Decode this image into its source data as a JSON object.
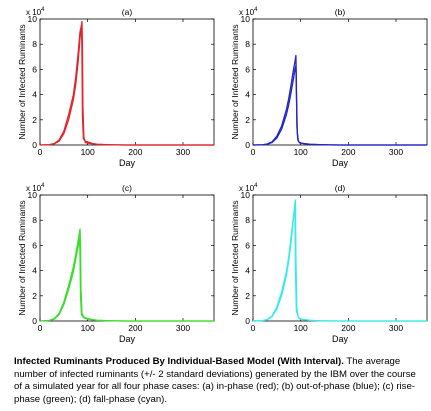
{
  "chart_data": [
    {
      "type": "line",
      "title": "(a)",
      "color": "#e0262a",
      "xlabel": "Day",
      "ylabel": "Number of Infected Ruminants",
      "y_multiplier": "x 10",
      "y_exponent": "4",
      "xlim": [
        0,
        365
      ],
      "ylim": [
        0,
        10
      ],
      "xticks": [
        "0",
        "100",
        "200",
        "300"
      ],
      "xtick_values": [
        0,
        100,
        200,
        300
      ],
      "yticks": [
        "0",
        "2",
        "4",
        "6",
        "8",
        "10"
      ],
      "ytick_values": [
        0,
        2,
        4,
        6,
        8,
        10
      ],
      "series": [
        {
          "x": [
            0,
            20,
            30,
            40,
            50,
            60,
            70,
            75,
            80,
            84,
            88,
            89,
            90,
            92,
            95,
            100,
            110,
            120,
            140,
            160,
            180,
            200,
            250,
            300,
            365
          ],
          "y": [
            0,
            0.02,
            0.1,
            0.3,
            0.9,
            2.0,
            3.6,
            4.8,
            6.6,
            8.5,
            9.8,
            8.0,
            3.0,
            0.6,
            0.2,
            0.15,
            0.1,
            0.05,
            0.02,
            0.01,
            0,
            0,
            0,
            0,
            0
          ]
        },
        {
          "x": [
            0,
            20,
            30,
            40,
            50,
            60,
            70,
            75,
            80,
            84,
            87,
            88,
            89,
            91,
            95,
            100,
            110,
            120,
            140,
            160,
            180,
            200,
            250,
            300,
            365
          ],
          "y": [
            0,
            0.03,
            0.12,
            0.4,
            1.1,
            2.4,
            4.0,
            5.4,
            7.3,
            9.0,
            9.5,
            7.5,
            2.4,
            0.5,
            0.3,
            0.25,
            0.12,
            0.06,
            0.03,
            0.01,
            0,
            0,
            0,
            0,
            0
          ]
        }
      ]
    },
    {
      "type": "line",
      "title": "(b)",
      "color": "#2323c8",
      "xlabel": "Day",
      "ylabel": "Number of Infected Ruminants",
      "y_multiplier": "x 10",
      "y_exponent": "4",
      "xlim": [
        0,
        365
      ],
      "ylim": [
        0,
        10
      ],
      "xticks": [
        "0",
        "100",
        "200",
        "300"
      ],
      "xtick_values": [
        0,
        100,
        200,
        300
      ],
      "yticks": [
        "0",
        "2",
        "4",
        "6",
        "8",
        "10"
      ],
      "ytick_values": [
        0,
        2,
        4,
        6,
        8,
        10
      ],
      "series": [
        {
          "x": [
            0,
            20,
            30,
            40,
            50,
            60,
            70,
            75,
            80,
            85,
            88,
            90,
            91,
            92,
            94,
            97,
            100,
            110,
            120,
            140,
            160,
            180,
            200,
            250,
            300,
            365
          ],
          "y": [
            0,
            0.02,
            0.08,
            0.25,
            0.7,
            1.5,
            2.8,
            3.7,
            4.8,
            6.0,
            6.6,
            7.1,
            5.0,
            1.5,
            0.4,
            0.2,
            0.15,
            0.1,
            0.06,
            0.03,
            0.01,
            0,
            0,
            0,
            0,
            0
          ]
        },
        {
          "x": [
            0,
            20,
            30,
            40,
            50,
            60,
            70,
            75,
            80,
            85,
            88,
            90,
            91,
            93,
            95,
            97,
            100,
            110,
            120,
            140,
            160,
            180,
            200,
            250,
            300,
            365
          ],
          "y": [
            0,
            0.02,
            0.06,
            0.2,
            0.55,
            1.25,
            2.4,
            3.2,
            4.2,
            5.3,
            6.0,
            6.3,
            4.2,
            1.0,
            0.35,
            0.2,
            0.15,
            0.1,
            0.05,
            0.03,
            0.01,
            0,
            0,
            0,
            0,
            0
          ]
        }
      ]
    },
    {
      "type": "line",
      "title": "(c)",
      "color": "#3ddc2e",
      "xlabel": "Day",
      "ylabel": "Number of Infected Ruminants",
      "y_multiplier": "x 10",
      "y_exponent": "4",
      "xlim": [
        0,
        365
      ],
      "ylim": [
        0,
        10
      ],
      "xticks": [
        "0",
        "100",
        "200",
        "300"
      ],
      "xtick_values": [
        0,
        100,
        200,
        300
      ],
      "yticks": [
        "0",
        "2",
        "4",
        "6",
        "8",
        "10"
      ],
      "ytick_values": [
        0,
        2,
        4,
        6,
        8,
        10
      ],
      "series": [
        {
          "x": [
            0,
            20,
            30,
            40,
            50,
            60,
            70,
            75,
            80,
            84,
            85,
            86,
            88,
            92,
            100,
            110,
            120,
            140,
            160,
            180,
            200,
            250,
            300,
            365
          ],
          "y": [
            0,
            0.05,
            0.2,
            0.6,
            1.5,
            2.8,
            4.3,
            5.3,
            6.4,
            7.3,
            6.0,
            2.5,
            0.6,
            0.3,
            0.2,
            0.12,
            0.06,
            0.03,
            0.01,
            0,
            0,
            0,
            0,
            0
          ]
        },
        {
          "x": [
            0,
            20,
            30,
            40,
            50,
            60,
            70,
            75,
            80,
            83,
            84,
            85,
            87,
            92,
            100,
            110,
            120,
            140,
            160,
            180,
            200,
            250,
            300,
            365
          ],
          "y": [
            0,
            0.04,
            0.15,
            0.5,
            1.3,
            2.5,
            3.9,
            4.9,
            5.9,
            6.6,
            5.2,
            2.0,
            0.5,
            0.25,
            0.15,
            0.1,
            0.05,
            0.02,
            0.01,
            0,
            0,
            0,
            0,
            0
          ]
        }
      ]
    },
    {
      "type": "line",
      "title": "(d)",
      "color": "#38eaea",
      "xlabel": "Day",
      "ylabel": "Number of Infected Ruminants",
      "y_multiplier": "x 10",
      "y_exponent": "4",
      "xlim": [
        0,
        365
      ],
      "ylim": [
        0,
        10
      ],
      "xticks": [
        "0",
        "100",
        "200",
        "300"
      ],
      "xtick_values": [
        0,
        100,
        200,
        300
      ],
      "yticks": [
        "0",
        "2",
        "4",
        "6",
        "8",
        "10"
      ],
      "ytick_values": [
        0,
        2,
        4,
        6,
        8,
        10
      ],
      "series": [
        {
          "x": [
            0,
            20,
            30,
            40,
            50,
            60,
            70,
            75,
            80,
            85,
            88,
            89,
            90,
            92,
            95,
            100,
            110,
            120,
            140,
            160,
            180,
            200,
            250,
            300,
            365
          ],
          "y": [
            0,
            0.03,
            0.1,
            0.35,
            0.95,
            2.0,
            3.6,
            4.8,
            6.3,
            8.2,
            9.4,
            9.6,
            5.0,
            1.0,
            0.3,
            0.15,
            0.1,
            0.05,
            0.02,
            0.01,
            0,
            0,
            0,
            0,
            0
          ]
        },
        {
          "x": [
            0,
            20,
            30,
            40,
            50,
            60,
            70,
            75,
            80,
            85,
            87,
            88,
            89,
            91,
            95,
            100,
            110,
            120,
            140,
            160,
            180,
            200,
            250,
            300,
            365
          ],
          "y": [
            0,
            0.03,
            0.12,
            0.4,
            1.1,
            2.3,
            3.9,
            5.1,
            6.7,
            8.3,
            8.9,
            8.8,
            4.0,
            0.8,
            0.3,
            0.15,
            0.1,
            0.05,
            0.02,
            0.01,
            0,
            0,
            0,
            0,
            0
          ]
        }
      ]
    }
  ],
  "caption": {
    "bold": "Infected Ruminants Produced By Individual-Based Model (With Interval).",
    "text": " The average number of infected ruminants (+/- 2 standard deviations) generated by the IBM over the course of a simulated year for all four phase cases: (a) in-phase (red); (b) out-of-phase (blue); (c) rise-phase (green); (d) fall-phase (cyan)."
  }
}
